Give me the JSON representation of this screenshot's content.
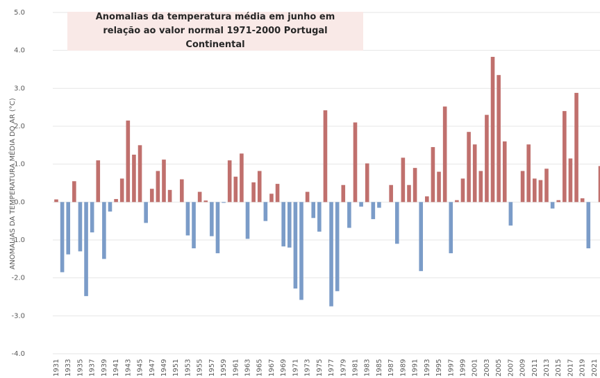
{
  "chart_data": {
    "type": "bar",
    "title": "Anomalias da temperatura média em junho em relação ao valor normal 1971-2000 Portugal Continental",
    "y_label": "ANOMALIAS DA TEMPERATURA MÉDIA DO AR (°C)",
    "categories": [
      "1931",
      null,
      "1933",
      null,
      "1935",
      null,
      "1937",
      null,
      "1939",
      null,
      "1941",
      null,
      "1943",
      null,
      "1945",
      null,
      "1947",
      null,
      "1949",
      null,
      "1951",
      null,
      "1953",
      null,
      "1955",
      null,
      "1957",
      null,
      "1959",
      null,
      "1961",
      null,
      "1963",
      null,
      "1965",
      null,
      "1967",
      null,
      "1969",
      null,
      "1971",
      null,
      "1973",
      null,
      "1975",
      null,
      "1977",
      null,
      "1979",
      null,
      "1981",
      null,
      "1983",
      null,
      "1985",
      null,
      "1987",
      null,
      "1989",
      null,
      "1991",
      null,
      "1993",
      null,
      "1995",
      null,
      "1997",
      null,
      "1999",
      null,
      "2001",
      null,
      "2003",
      null,
      "2005",
      null,
      "2007",
      null,
      "2009",
      null,
      "2011",
      null,
      "2013",
      null,
      "2015",
      null,
      "2017",
      null,
      "2019",
      null,
      "2021",
      null
    ],
    "values": [
      0.07,
      -1.85,
      -1.38,
      0.55,
      -1.3,
      -2.48,
      -0.8,
      1.1,
      -1.5,
      -0.25,
      0.08,
      0.62,
      2.15,
      1.25,
      1.5,
      -0.55,
      0.35,
      0.82,
      1.12,
      0.32,
      0.0,
      0.6,
      -0.88,
      -1.22,
      0.27,
      0.04,
      -0.9,
      -1.35,
      -0.02,
      1.1,
      0.67,
      1.28,
      -0.97,
      0.52,
      0.82,
      -0.5,
      0.22,
      0.48,
      -1.17,
      -1.2,
      -2.28,
      -2.58,
      0.27,
      -0.42,
      -0.78,
      2.42,
      -2.75,
      -2.35,
      0.45,
      -0.68,
      2.1,
      -0.12,
      1.02,
      -0.45,
      -0.15,
      0.0,
      0.45,
      -1.1,
      1.17,
      0.45,
      0.9,
      -1.82,
      0.15,
      1.45,
      0.8,
      2.52,
      -1.35,
      0.05,
      0.62,
      1.85,
      1.52,
      0.82,
      2.3,
      3.83,
      3.35,
      1.6,
      -0.62,
      0.0,
      0.82,
      1.52,
      0.62,
      0.58,
      0.88,
      -0.17,
      0.05,
      2.4,
      1.15,
      2.88,
      0.1,
      -1.22,
      0.0,
      0.95
    ],
    "color_positive": "#c0706d",
    "color_negative": "#7b9cc8",
    "ylim": [
      -4,
      5
    ],
    "yticks": [
      {
        "value": -4,
        "label": "-4.0"
      },
      {
        "value": -3,
        "label": "-3.0"
      },
      {
        "value": -2,
        "label": "-2.0"
      },
      {
        "value": -1,
        "label": "-1.0"
      },
      {
        "value": 0,
        "label": "0.0"
      },
      {
        "value": 1,
        "label": "1.0"
      },
      {
        "value": 2,
        "label": "2.0"
      },
      {
        "value": 3,
        "label": "3.0"
      },
      {
        "value": 4,
        "label": "4.0"
      },
      {
        "value": 5,
        "label": "5.0"
      }
    ],
    "grid": true
  }
}
